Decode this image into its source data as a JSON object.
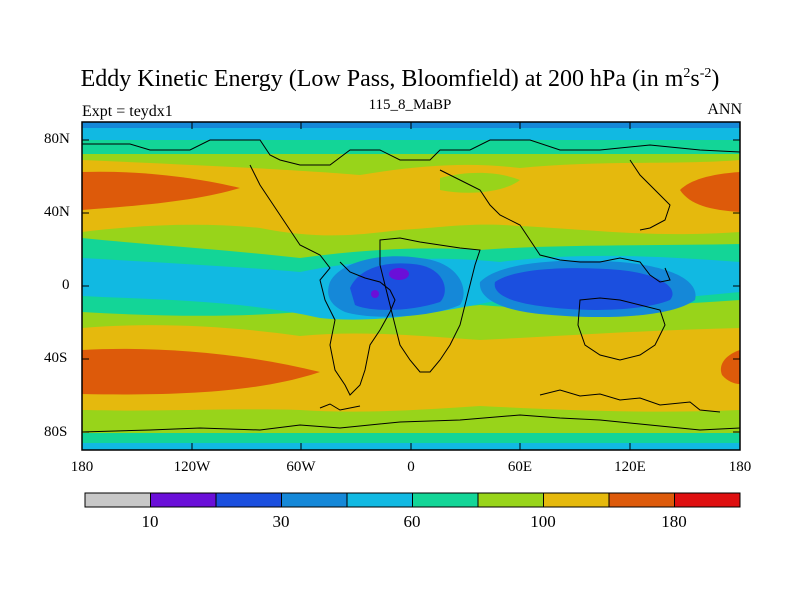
{
  "header": {
    "title_main": "Eddy Kinetic Energy (Low Pass, Bloomfield) at 200 hPa (in m",
    "title_sup1": "2",
    "title_mid": "s",
    "title_sup2": "-2",
    "title_end": ")",
    "experiment": "Expt = teydx1",
    "case": "115_8_MaBP",
    "period": "ANN"
  },
  "axes": {
    "lat_labels": [
      "80N",
      "40N",
      "0",
      "40S",
      "80S"
    ],
    "lon_labels": [
      "180",
      "120W",
      "60W",
      "0",
      "60E",
      "120E",
      "180"
    ]
  },
  "colorbar": {
    "colors": [
      "#c8c8c8",
      "#6a0fd8",
      "#1b4fdf",
      "#1588d8",
      "#11b9e2",
      "#13d597",
      "#98d41a",
      "#e5b90d",
      "#dd5a0a",
      "#de0f10"
    ],
    "labels": [
      "10",
      "30",
      "60",
      "100",
      "180"
    ]
  },
  "colors": {
    "outline": "#000000"
  }
}
